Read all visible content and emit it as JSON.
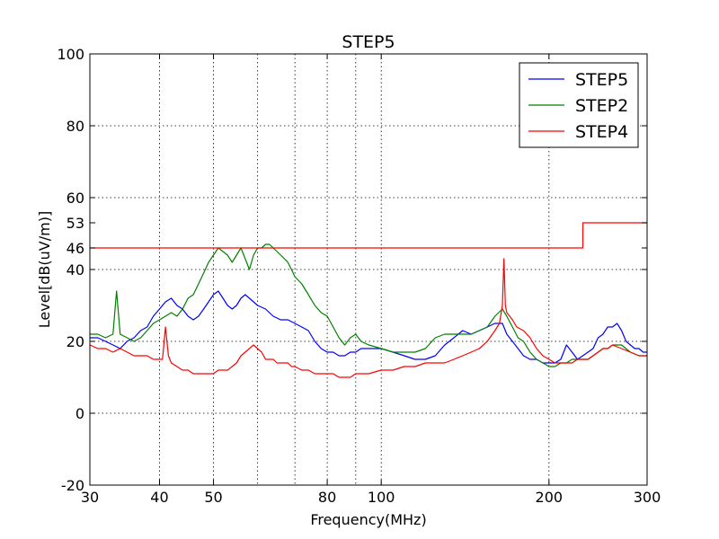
{
  "chart_data": {
    "type": "line",
    "title": "STEP5",
    "xlabel": "Frequency(MHz)",
    "ylabel": "Level[dB(uV/m)]",
    "xscale": "log",
    "xlim": [
      30,
      300
    ],
    "ylim": [
      -20,
      100
    ],
    "x_ticks": [
      30,
      40,
      50,
      80,
      100,
      200,
      300
    ],
    "x_grid": [
      30,
      40,
      50,
      60,
      70,
      80,
      90,
      100,
      200,
      300
    ],
    "y_ticks": [
      -20,
      0,
      20,
      40,
      46,
      53,
      60,
      80,
      100
    ],
    "y_grid": [
      -20,
      0,
      20,
      40,
      60,
      80,
      100
    ],
    "grid": true,
    "legend": {
      "position": "top-right",
      "entries": [
        "STEP5",
        "STEP2",
        "STEP4"
      ]
    },
    "series": [
      {
        "name": "STEP5",
        "color": "#0000ff",
        "points": [
          [
            30,
            21
          ],
          [
            31,
            21
          ],
          [
            32,
            20
          ],
          [
            33,
            19
          ],
          [
            34,
            18
          ],
          [
            35,
            20
          ],
          [
            36,
            21
          ],
          [
            37,
            23
          ],
          [
            38,
            24
          ],
          [
            39,
            27
          ],
          [
            40,
            29
          ],
          [
            41,
            31
          ],
          [
            42,
            32
          ],
          [
            43,
            30
          ],
          [
            44,
            29
          ],
          [
            45,
            27
          ],
          [
            46,
            26
          ],
          [
            47,
            27
          ],
          [
            48,
            29
          ],
          [
            49,
            31
          ],
          [
            50,
            33
          ],
          [
            51,
            34
          ],
          [
            52,
            32
          ],
          [
            53,
            30
          ],
          [
            54,
            29
          ],
          [
            55,
            30
          ],
          [
            56,
            32
          ],
          [
            57,
            33
          ],
          [
            58,
            32
          ],
          [
            59,
            31
          ],
          [
            60,
            30
          ],
          [
            62,
            29
          ],
          [
            64,
            27
          ],
          [
            66,
            26
          ],
          [
            68,
            26
          ],
          [
            70,
            25
          ],
          [
            72,
            24
          ],
          [
            74,
            23
          ],
          [
            76,
            20
          ],
          [
            78,
            18
          ],
          [
            80,
            17
          ],
          [
            82,
            17
          ],
          [
            84,
            16
          ],
          [
            86,
            16
          ],
          [
            88,
            17
          ],
          [
            90,
            17
          ],
          [
            92,
            18
          ],
          [
            95,
            18
          ],
          [
            100,
            18
          ],
          [
            105,
            17
          ],
          [
            110,
            16
          ],
          [
            115,
            15
          ],
          [
            120,
            15
          ],
          [
            125,
            16
          ],
          [
            130,
            19
          ],
          [
            135,
            21
          ],
          [
            140,
            23
          ],
          [
            145,
            22
          ],
          [
            150,
            23
          ],
          [
            155,
            24
          ],
          [
            160,
            25
          ],
          [
            165,
            25
          ],
          [
            168,
            22
          ],
          [
            172,
            20
          ],
          [
            176,
            18
          ],
          [
            180,
            16
          ],
          [
            185,
            15
          ],
          [
            190,
            15
          ],
          [
            195,
            14
          ],
          [
            200,
            14
          ],
          [
            205,
            14
          ],
          [
            210,
            15
          ],
          [
            215,
            19
          ],
          [
            220,
            17
          ],
          [
            225,
            15
          ],
          [
            230,
            16
          ],
          [
            235,
            17
          ],
          [
            240,
            18
          ],
          [
            245,
            21
          ],
          [
            250,
            22
          ],
          [
            255,
            24
          ],
          [
            260,
            24
          ],
          [
            265,
            25
          ],
          [
            270,
            23
          ],
          [
            275,
            20
          ],
          [
            280,
            19
          ],
          [
            285,
            18
          ],
          [
            290,
            18
          ],
          [
            295,
            17
          ],
          [
            300,
            17
          ]
        ]
      },
      {
        "name": "STEP2",
        "color": "#008000",
        "points": [
          [
            30,
            22
          ],
          [
            31,
            22
          ],
          [
            32,
            21
          ],
          [
            33,
            22
          ],
          [
            33.5,
            34
          ],
          [
            34,
            22
          ],
          [
            35,
            21
          ],
          [
            36,
            20
          ],
          [
            37,
            21
          ],
          [
            38,
            23
          ],
          [
            39,
            25
          ],
          [
            40,
            26
          ],
          [
            41,
            27
          ],
          [
            42,
            28
          ],
          [
            43,
            27
          ],
          [
            44,
            29
          ],
          [
            45,
            32
          ],
          [
            46,
            33
          ],
          [
            47,
            36
          ],
          [
            48,
            39
          ],
          [
            49,
            42
          ],
          [
            50,
            44
          ],
          [
            51,
            46
          ],
          [
            52,
            45
          ],
          [
            53,
            44
          ],
          [
            54,
            42
          ],
          [
            55,
            44
          ],
          [
            56,
            46
          ],
          [
            57,
            43
          ],
          [
            58,
            40
          ],
          [
            59,
            44
          ],
          [
            60,
            46
          ],
          [
            61,
            46
          ],
          [
            62,
            47
          ],
          [
            63,
            47
          ],
          [
            64,
            46
          ],
          [
            65,
            45
          ],
          [
            66,
            44
          ],
          [
            67,
            43
          ],
          [
            68,
            42
          ],
          [
            69,
            40
          ],
          [
            70,
            38
          ],
          [
            72,
            36
          ],
          [
            74,
            33
          ],
          [
            76,
            30
          ],
          [
            78,
            28
          ],
          [
            80,
            27
          ],
          [
            82,
            24
          ],
          [
            84,
            21
          ],
          [
            86,
            19
          ],
          [
            88,
            21
          ],
          [
            90,
            22
          ],
          [
            92,
            20
          ],
          [
            95,
            19
          ],
          [
            100,
            18
          ],
          [
            105,
            17
          ],
          [
            110,
            17
          ],
          [
            115,
            17
          ],
          [
            120,
            18
          ],
          [
            125,
            21
          ],
          [
            130,
            22
          ],
          [
            135,
            22
          ],
          [
            140,
            22
          ],
          [
            145,
            22
          ],
          [
            150,
            23
          ],
          [
            155,
            24
          ],
          [
            160,
            27
          ],
          [
            165,
            29
          ],
          [
            168,
            27
          ],
          [
            172,
            24
          ],
          [
            176,
            21
          ],
          [
            180,
            20
          ],
          [
            185,
            17
          ],
          [
            190,
            15
          ],
          [
            195,
            14
          ],
          [
            200,
            13
          ],
          [
            205,
            13
          ],
          [
            210,
            14
          ],
          [
            215,
            14
          ],
          [
            220,
            15
          ],
          [
            225,
            15
          ],
          [
            230,
            15
          ],
          [
            235,
            15
          ],
          [
            240,
            16
          ],
          [
            245,
            17
          ],
          [
            250,
            18
          ],
          [
            255,
            18
          ],
          [
            260,
            19
          ],
          [
            270,
            19
          ],
          [
            280,
            17
          ],
          [
            290,
            16
          ],
          [
            300,
            16
          ]
        ]
      },
      {
        "name": "STEP4",
        "color": "#ff0000",
        "points": [
          [
            30,
            19
          ],
          [
            31,
            18
          ],
          [
            32,
            18
          ],
          [
            33,
            17
          ],
          [
            34,
            18
          ],
          [
            35,
            17
          ],
          [
            36,
            16
          ],
          [
            37,
            16
          ],
          [
            38,
            16
          ],
          [
            39,
            15
          ],
          [
            40,
            15
          ],
          [
            40.5,
            15
          ],
          [
            41,
            24
          ],
          [
            41.5,
            16
          ],
          [
            42,
            14
          ],
          [
            43,
            13
          ],
          [
            44,
            12
          ],
          [
            45,
            12
          ],
          [
            46,
            11
          ],
          [
            47,
            11
          ],
          [
            48,
            11
          ],
          [
            49,
            11
          ],
          [
            50,
            11
          ],
          [
            51,
            12
          ],
          [
            52,
            12
          ],
          [
            53,
            12
          ],
          [
            54,
            13
          ],
          [
            55,
            14
          ],
          [
            56,
            16
          ],
          [
            57,
            17
          ],
          [
            58,
            18
          ],
          [
            59,
            19
          ],
          [
            60,
            18
          ],
          [
            61,
            17
          ],
          [
            62,
            15
          ],
          [
            63,
            15
          ],
          [
            64,
            15
          ],
          [
            65,
            14
          ],
          [
            66,
            14
          ],
          [
            67,
            14
          ],
          [
            68,
            14
          ],
          [
            69,
            13
          ],
          [
            70,
            13
          ],
          [
            72,
            12
          ],
          [
            74,
            12
          ],
          [
            76,
            11
          ],
          [
            78,
            11
          ],
          [
            80,
            11
          ],
          [
            82,
            11
          ],
          [
            84,
            10
          ],
          [
            86,
            10
          ],
          [
            88,
            10
          ],
          [
            90,
            11
          ],
          [
            92,
            11
          ],
          [
            95,
            11
          ],
          [
            100,
            12
          ],
          [
            105,
            12
          ],
          [
            110,
            13
          ],
          [
            115,
            13
          ],
          [
            120,
            14
          ],
          [
            125,
            14
          ],
          [
            130,
            14
          ],
          [
            135,
            15
          ],
          [
            140,
            16
          ],
          [
            145,
            17
          ],
          [
            150,
            18
          ],
          [
            155,
            20
          ],
          [
            160,
            23
          ],
          [
            163,
            25
          ],
          [
            165,
            30
          ],
          [
            166,
            43
          ],
          [
            167,
            30
          ],
          [
            168,
            28
          ],
          [
            170,
            27
          ],
          [
            172,
            26
          ],
          [
            175,
            24
          ],
          [
            180,
            23
          ],
          [
            185,
            21
          ],
          [
            190,
            18
          ],
          [
            195,
            16
          ],
          [
            200,
            15
          ],
          [
            205,
            14
          ],
          [
            210,
            14
          ],
          [
            215,
            14
          ],
          [
            220,
            14
          ],
          [
            225,
            15
          ],
          [
            230,
            15
          ],
          [
            235,
            15
          ],
          [
            240,
            16
          ],
          [
            245,
            17
          ],
          [
            250,
            18
          ],
          [
            255,
            18
          ],
          [
            260,
            19
          ],
          [
            270,
            18
          ],
          [
            280,
            17
          ],
          [
            290,
            16
          ],
          [
            300,
            16
          ]
        ]
      },
      {
        "name": "",
        "color": "#ff0000",
        "points": [
          [
            30,
            46
          ],
          [
            230,
            46
          ],
          [
            230,
            53
          ],
          [
            300,
            53
          ]
        ]
      }
    ]
  }
}
